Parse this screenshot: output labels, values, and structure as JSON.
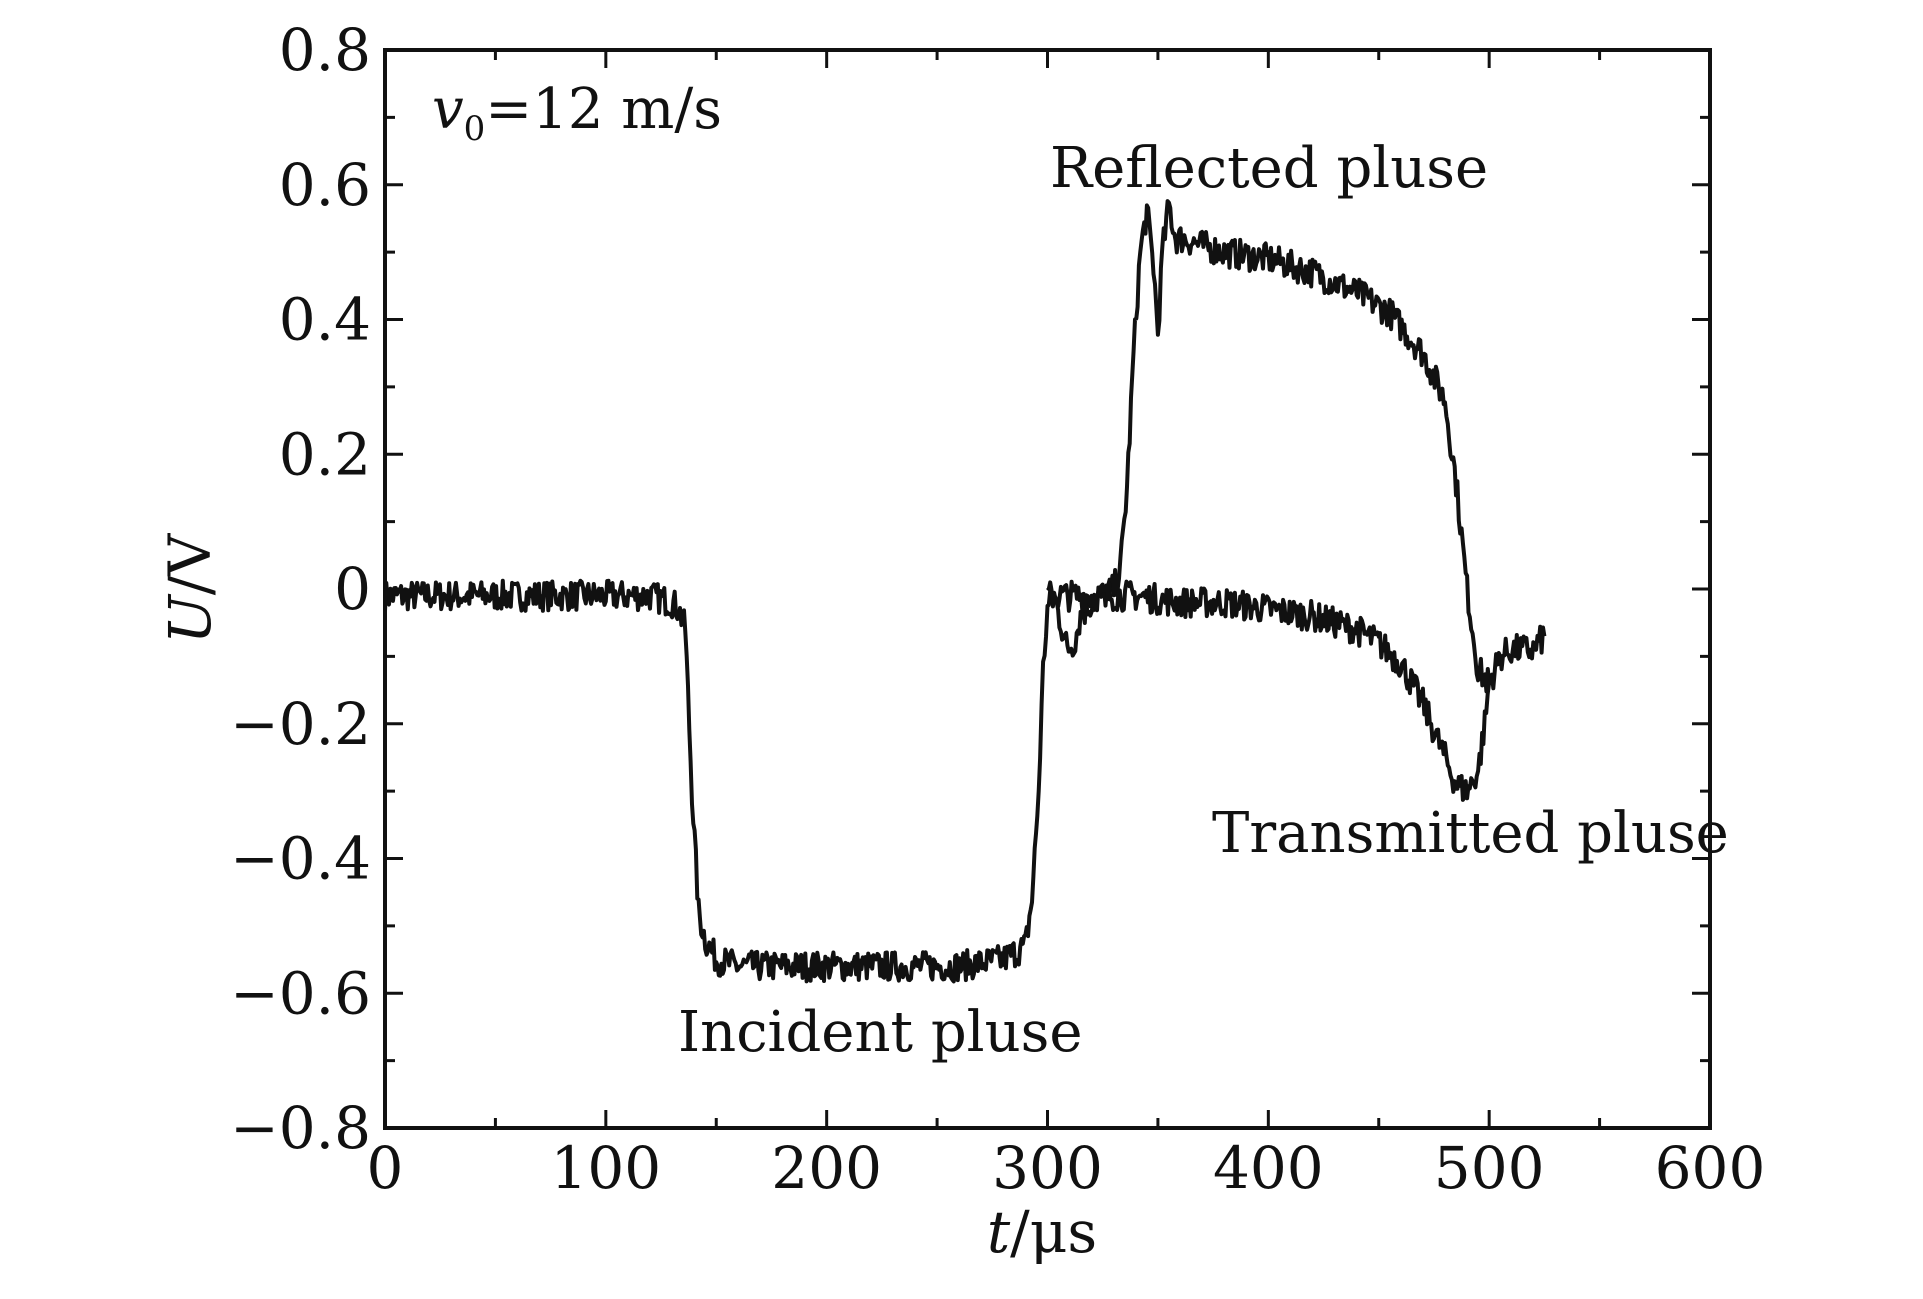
{
  "chart_data": {
    "type": "line",
    "xlabel_var": "t",
    "xlabel_unit": "/μs",
    "ylabel_var": "U",
    "ylabel_unit": "/V",
    "xlim": [
      0,
      600
    ],
    "ylim": [
      -0.8,
      0.8
    ],
    "xticks": [
      0,
      100,
      200,
      300,
      400,
      500,
      600
    ],
    "yticks": [
      0.8,
      0.6,
      0.4,
      0.2,
      0,
      -0.2,
      -0.4,
      -0.6,
      -0.8
    ],
    "ytick_labels": [
      "0.8",
      "0.6",
      "0.4",
      "0.2",
      "0",
      "−0.2",
      "−0.4",
      "−0.6",
      "−0.8"
    ],
    "xtick_labels": [
      "0",
      "100",
      "200",
      "300",
      "400",
      "500",
      "600"
    ],
    "grid": false,
    "condition": {
      "var": "v",
      "sub": "0",
      "rest": "=12 m/s"
    },
    "annotations": {
      "incident": "Incident pluse",
      "reflected": "Reflected pluse",
      "transmitted": "Transmitted pluse"
    },
    "series": [
      {
        "key": "incident_reflected",
        "x": [
          0,
          20,
          40,
          60,
          80,
          100,
          120,
          130,
          133,
          136,
          139,
          142,
          145,
          150,
          160,
          180,
          200,
          220,
          240,
          260,
          280,
          290,
          293,
          296,
          298,
          300,
          303,
          306,
          309,
          312,
          315,
          320,
          325,
          330,
          333,
          336,
          339,
          342,
          345,
          348,
          350,
          352,
          355,
          358,
          362,
          370,
          380,
          400,
          420,
          440,
          455,
          470,
          480,
          485,
          490,
          495,
          500
        ],
        "y": [
          -0.01,
          -0.01,
          -0.01,
          -0.01,
          -0.01,
          -0.01,
          -0.01,
          -0.02,
          -0.03,
          -0.06,
          -0.3,
          -0.48,
          -0.52,
          -0.55,
          -0.56,
          -0.56,
          -0.56,
          -0.56,
          -0.56,
          -0.56,
          -0.55,
          -0.53,
          -0.46,
          -0.3,
          -0.12,
          -0.03,
          -0.01,
          -0.05,
          -0.09,
          -0.08,
          -0.04,
          -0.02,
          -0.01,
          0.0,
          0.03,
          0.15,
          0.35,
          0.5,
          0.56,
          0.48,
          0.38,
          0.5,
          0.57,
          0.52,
          0.52,
          0.51,
          0.5,
          0.49,
          0.47,
          0.44,
          0.41,
          0.35,
          0.28,
          0.16,
          0.0,
          -0.12,
          -0.14
        ]
      },
      {
        "key": "transmitted",
        "x": [
          300,
          320,
          340,
          360,
          380,
          400,
          420,
          440,
          450,
          460,
          470,
          475,
          480,
          485,
          490,
          495,
          498,
          500,
          505,
          510,
          515,
          520,
          525
        ],
        "y": [
          -0.01,
          -0.01,
          -0.01,
          -0.02,
          -0.02,
          -0.03,
          -0.04,
          -0.06,
          -0.08,
          -0.11,
          -0.17,
          -0.21,
          -0.25,
          -0.29,
          -0.3,
          -0.27,
          -0.2,
          -0.14,
          -0.1,
          -0.09,
          -0.09,
          -0.09,
          -0.07
        ]
      }
    ]
  }
}
